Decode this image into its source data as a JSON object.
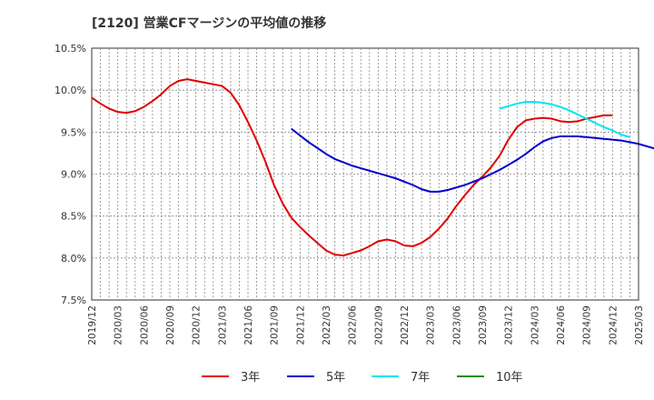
{
  "chart_data": {
    "type": "line",
    "title": "[2120]  営業CFマージンの平均値の推移",
    "xlabel": "",
    "ylabel": "",
    "ylim": [
      7.5,
      10.5
    ],
    "yticks": [
      7.5,
      8.0,
      8.5,
      9.0,
      9.5,
      10.0,
      10.5
    ],
    "ytick_labels": [
      "7.5%",
      "8.0%",
      "8.5%",
      "9.0%",
      "9.5%",
      "10.0%",
      "10.5%"
    ],
    "xtick_labels": [
      "2019/12",
      "2020/03",
      "2020/06",
      "2020/09",
      "2020/12",
      "2021/03",
      "2021/06",
      "2021/09",
      "2021/12",
      "2022/03",
      "2022/06",
      "2022/09",
      "2022/12",
      "2023/03",
      "2023/06",
      "2023/09",
      "2023/12",
      "2024/03",
      "2024/06",
      "2024/09",
      "2024/12",
      "2025/03"
    ],
    "grid": true,
    "legend_position": "bottom",
    "series": [
      {
        "name": "3年",
        "color": "#e00000",
        "start": "2019/12",
        "values": [
          9.91,
          9.84,
          9.78,
          9.74,
          9.73,
          9.75,
          9.8,
          9.87,
          9.95,
          10.05,
          10.11,
          10.13,
          10.11,
          10.09,
          10.07,
          10.05,
          9.97,
          9.82,
          9.62,
          9.4,
          9.15,
          8.87,
          8.65,
          8.48,
          8.37,
          8.27,
          8.18,
          8.09,
          8.04,
          8.03,
          8.06,
          8.09,
          8.14,
          8.2,
          8.22,
          8.2,
          8.15,
          8.14,
          8.18,
          8.25,
          8.35,
          8.47,
          8.62,
          8.75,
          8.87,
          8.97,
          9.08,
          9.22,
          9.41,
          9.56,
          9.64,
          9.66,
          9.67,
          9.66,
          9.63,
          9.62,
          9.63,
          9.66,
          9.68,
          9.7,
          9.7
        ]
      },
      {
        "name": "5年",
        "color": "#0000cc",
        "start": "2021/11",
        "values": [
          9.54,
          9.46,
          9.38,
          9.31,
          9.24,
          9.18,
          9.14,
          9.1,
          9.07,
          9.04,
          9.01,
          8.98,
          8.95,
          8.91,
          8.87,
          8.82,
          8.79,
          8.79,
          8.81,
          8.84,
          8.87,
          8.91,
          8.95,
          9.0,
          9.05,
          9.11,
          9.17,
          9.24,
          9.32,
          9.39,
          9.43,
          9.45,
          9.45,
          9.45,
          9.44,
          9.43,
          9.42,
          9.41,
          9.4,
          9.38,
          9.36,
          9.33,
          9.3
        ]
      },
      {
        "name": "7年",
        "color": "#00e5ee",
        "start": "2023/11",
        "values": [
          9.78,
          9.81,
          9.84,
          9.86,
          9.86,
          9.85,
          9.83,
          9.8,
          9.76,
          9.71,
          9.66,
          9.61,
          9.56,
          9.52,
          9.47,
          9.44
        ]
      },
      {
        "name": "10年",
        "color": "#228b22",
        "start": "",
        "values": []
      }
    ]
  }
}
